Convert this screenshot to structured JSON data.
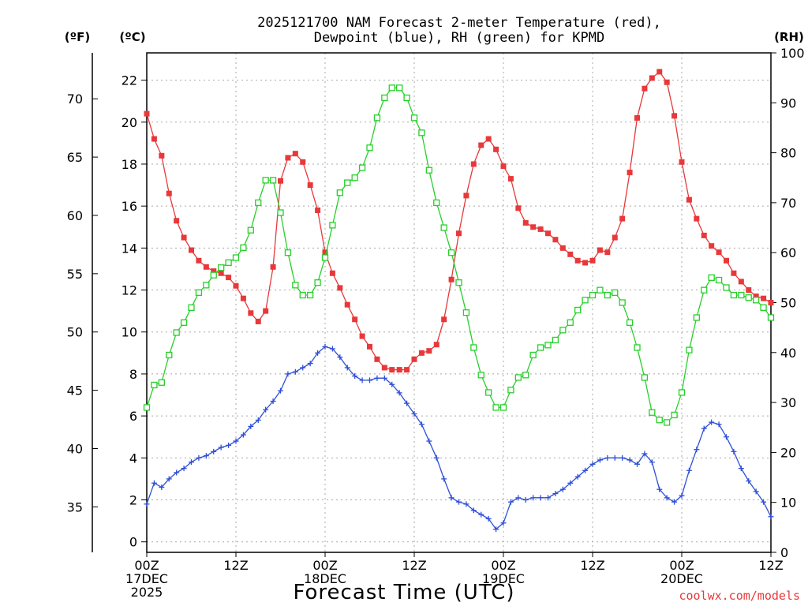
{
  "chart_data": {
    "type": "line",
    "title_line1": "2025121700 NAM Forecast 2-meter Temperature (red),",
    "title_line2": "Dewpoint (blue), RH (green) for KPMD",
    "xlabel": "Forecast Time (UTC)",
    "credit": "coolwx.com/models",
    "units": {
      "fahrenheit": "(ºF)",
      "celsius": "(ºC)",
      "rh": "(RH)"
    },
    "x_range_hours": [
      0,
      84
    ],
    "x_ticks": [
      {
        "hour": 0,
        "line1": "00Z",
        "line2": "17DEC",
        "line3": "2025"
      },
      {
        "hour": 12,
        "line1": "12Z",
        "line2": "",
        "line3": ""
      },
      {
        "hour": 24,
        "line1": "00Z",
        "line2": "18DEC",
        "line3": ""
      },
      {
        "hour": 36,
        "line1": "12Z",
        "line2": "",
        "line3": ""
      },
      {
        "hour": 48,
        "line1": "00Z",
        "line2": "19DEC",
        "line3": ""
      },
      {
        "hour": 60,
        "line1": "12Z",
        "line2": "",
        "line3": ""
      },
      {
        "hour": 72,
        "line1": "00Z",
        "line2": "20DEC",
        "line3": ""
      },
      {
        "hour": 84,
        "line1": "12Z",
        "line2": "",
        "line3": ""
      }
    ],
    "y_left_celsius": {
      "range": [
        -0.5,
        23.3
      ],
      "ticks": [
        0,
        2,
        4,
        6,
        8,
        10,
        12,
        14,
        16,
        18,
        20,
        22
      ]
    },
    "y_left_fahrenheit": {
      "ticks": [
        35,
        40,
        45,
        50,
        55,
        60,
        65,
        70
      ]
    },
    "y_right_rh": {
      "range": [
        0,
        100
      ],
      "ticks": [
        0,
        10,
        20,
        30,
        40,
        50,
        60,
        70,
        80,
        90,
        100
      ]
    },
    "grid": true,
    "series": [
      {
        "name": "Temperature",
        "unit": "C",
        "color": "#e8383a",
        "marker": "filled-square",
        "values": [
          20.4,
          19.2,
          18.4,
          16.6,
          15.3,
          14.5,
          13.9,
          13.4,
          13.1,
          12.9,
          12.8,
          12.6,
          12.2,
          11.6,
          10.9,
          10.5,
          11.0,
          13.1,
          17.2,
          18.3,
          18.5,
          18.1,
          17.0,
          15.8,
          13.8,
          12.8,
          12.1,
          11.3,
          10.6,
          9.8,
          9.3,
          8.7,
          8.3,
          8.2,
          8.2,
          8.2,
          8.7,
          9.0,
          9.1,
          9.4,
          10.6,
          12.5,
          14.7,
          16.5,
          18.0,
          18.9,
          19.2,
          18.7,
          17.9,
          17.3,
          15.9,
          15.2,
          15.0,
          14.9,
          14.7,
          14.4,
          14.0,
          13.7,
          13.4,
          13.3,
          13.4,
          13.9,
          13.8,
          14.5,
          15.4,
          17.6,
          20.2,
          21.6,
          22.1,
          22.4,
          21.9,
          20.3,
          18.1,
          16.3,
          15.4,
          14.6,
          14.1,
          13.8,
          13.4,
          12.8,
          12.4,
          12.0,
          11.7,
          11.6,
          11.4
        ]
      },
      {
        "name": "Dewpoint",
        "unit": "C",
        "color": "#2e4fd8",
        "marker": "plus",
        "values": [
          1.8,
          2.8,
          2.6,
          3.0,
          3.3,
          3.5,
          3.8,
          4.0,
          4.1,
          4.3,
          4.5,
          4.6,
          4.8,
          5.1,
          5.5,
          5.8,
          6.3,
          6.7,
          7.2,
          8.0,
          8.1,
          8.3,
          8.5,
          9.0,
          9.3,
          9.2,
          8.8,
          8.3,
          7.9,
          7.7,
          7.7,
          7.8,
          7.8,
          7.5,
          7.1,
          6.6,
          6.1,
          5.6,
          4.8,
          4.0,
          3.0,
          2.1,
          1.9,
          1.8,
          1.5,
          1.3,
          1.1,
          0.6,
          0.9,
          1.9,
          2.1,
          2.0,
          2.1,
          2.1,
          2.1,
          2.3,
          2.5,
          2.8,
          3.1,
          3.4,
          3.7,
          3.9,
          4.0,
          4.0,
          4.0,
          3.9,
          3.7,
          4.2,
          3.8,
          2.5,
          2.1,
          1.9,
          2.2,
          3.4,
          4.4,
          5.4,
          5.7,
          5.6,
          5.0,
          4.3,
          3.5,
          2.9,
          2.4,
          1.9,
          1.2
        ]
      },
      {
        "name": "Relative Humidity",
        "unit": "%",
        "color": "#26d02a",
        "marker": "open-square",
        "values": [
          29,
          33.5,
          34,
          39.5,
          44,
          46,
          49,
          52,
          53.5,
          55.5,
          57,
          58,
          59,
          61,
          64.5,
          70,
          74.5,
          74.5,
          68,
          60,
          53.5,
          51.5,
          51.5,
          54,
          59,
          65.5,
          72,
          74,
          75,
          77,
          81,
          87,
          91,
          93,
          93,
          91,
          87,
          84,
          76.5,
          70,
          65,
          60,
          54,
          48,
          41,
          35.5,
          32,
          29,
          29,
          32.5,
          35,
          35.5,
          39.5,
          41,
          41.5,
          42.5,
          44.5,
          46,
          48.5,
          50.5,
          51.5,
          52.5,
          51.5,
          52,
          50,
          46,
          41,
          35,
          28,
          26.5,
          26,
          27.5,
          32,
          40.5,
          47,
          52.5,
          55,
          54.5,
          53,
          51.5,
          51.5,
          51,
          50.5,
          49,
          47
        ]
      }
    ]
  }
}
